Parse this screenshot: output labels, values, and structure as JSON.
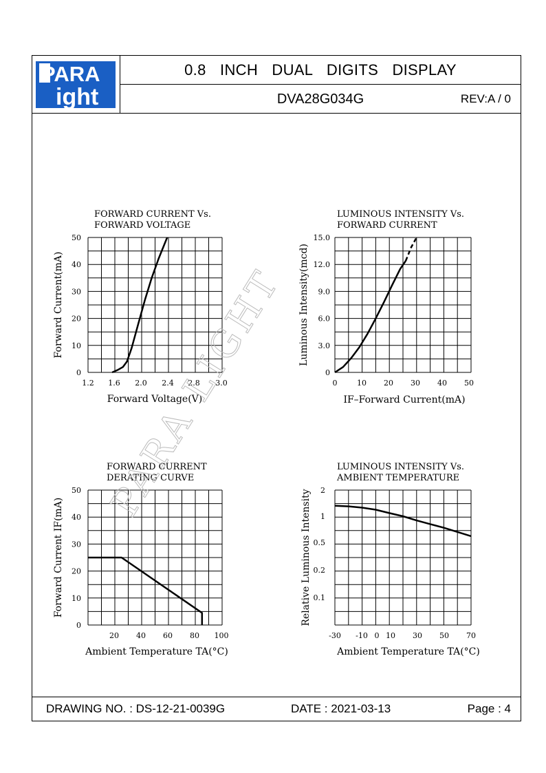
{
  "header": {
    "logo_top": "PARA",
    "logo_bottom": "ight",
    "title": "0.8 INCH DUAL DIGITS DISPLAY",
    "part_no": "DVA28G034G",
    "rev": "REV:A / 0"
  },
  "footer": {
    "drawing_no": "DRAWING NO. : DS-12-21-0039G",
    "date": "DATE : 2021-03-13",
    "page": "Page : 4"
  },
  "watermark": "PARA LIGHT",
  "colors": {
    "logo_blue": "#1a5fc4",
    "line": "#000000"
  },
  "chart_data": [
    {
      "type": "line",
      "title": "FORWARD CURRENT Vs.\nFORWARD VOLTAGE",
      "title_lines": [
        "FORWARD  CURRENT  Vs.",
        "FORWARD  VOLTAGE"
      ],
      "xlabel": "Forward Voltage(V)",
      "ylabel": "Forward Current(mA)",
      "x_ticks": [
        "1.2",
        "1.6",
        "2.0",
        "2.4",
        "2.8",
        "3.0"
      ],
      "y_ticks": [
        "0",
        "10",
        "20",
        "30",
        "40",
        "50"
      ],
      "xlim": [
        1.2,
        3.2
      ],
      "ylim": [
        0,
        50
      ],
      "grid": true,
      "series": [
        {
          "x": [
            1.56,
            1.65,
            1.72,
            1.78,
            1.85,
            1.95,
            2.05,
            2.15,
            2.25,
            2.38
          ],
          "y": [
            0,
            1,
            2,
            4,
            9,
            18,
            27,
            35,
            42,
            50
          ]
        }
      ]
    },
    {
      "type": "line",
      "title_lines": [
        "LUMINOUS  INTENSITY  Vs.",
        "FORWARD  CURRENT"
      ],
      "xlabel": "IF–Forward Current(mA)",
      "ylabel": "Luminous Intensity(mcd)",
      "x_ticks": [
        "0",
        "10",
        "20",
        "30",
        "40",
        "50"
      ],
      "y_ticks": [
        "0",
        "3.0",
        "6.0",
        "9.0",
        "12.0",
        "15.0"
      ],
      "xlim": [
        0,
        50
      ],
      "ylim": [
        0,
        15
      ],
      "grid": true,
      "series": [
        {
          "x": [
            0,
            3,
            6,
            9,
            12,
            15,
            18,
            21,
            24,
            26
          ],
          "y": [
            0,
            0.6,
            1.6,
            2.8,
            4.3,
            6.0,
            7.8,
            9.7,
            11.5,
            12.4
          ]
        },
        {
          "style": "dashed",
          "x": [
            26,
            28,
            30
          ],
          "y": [
            12.4,
            13.9,
            15.0
          ]
        }
      ]
    },
    {
      "type": "line",
      "title_lines": [
        "FORWARD  CURRENT",
        "DERATING  CURVE"
      ],
      "xlabel": "Ambient Temperature TA(°C)",
      "ylabel": "Forward Current IF(mA)",
      "x_ticks": [
        "20",
        "40",
        "60",
        "80",
        "100"
      ],
      "y_ticks": [
        "0",
        "10",
        "20",
        "30",
        "40",
        "50"
      ],
      "xlim": [
        0,
        100
      ],
      "ylim": [
        0,
        50
      ],
      "grid": true,
      "series": [
        {
          "x": [
            0,
            25,
            85,
            85
          ],
          "y": [
            25,
            25,
            4.5,
            0
          ]
        }
      ]
    },
    {
      "type": "line",
      "title_lines": [
        "LUMINOUS  INTENSITY  Vs.",
        "AMBIENT  TEMPERATURE"
      ],
      "xlabel": "Ambient Temperature TA(°C)",
      "ylabel": "Relative Luminous Intensity",
      "x_ticks": [
        "-30",
        "-10",
        "0",
        "10",
        "30",
        "50",
        "70"
      ],
      "y_ticks": [
        "0.1",
        "0.2",
        "0.5",
        "1",
        "2"
      ],
      "xlim": [
        -30,
        70
      ],
      "ylim_labels": [
        "0.1",
        "2"
      ],
      "grid": true,
      "series": [
        {
          "x": [
            -30,
            -20,
            -10,
            0,
            10,
            20,
            30,
            40,
            50,
            60,
            70
          ],
          "y": [
            1.4,
            1.38,
            1.33,
            1.25,
            1.12,
            1.0,
            0.92,
            0.85,
            0.78,
            0.7,
            0.62
          ]
        }
      ]
    }
  ]
}
